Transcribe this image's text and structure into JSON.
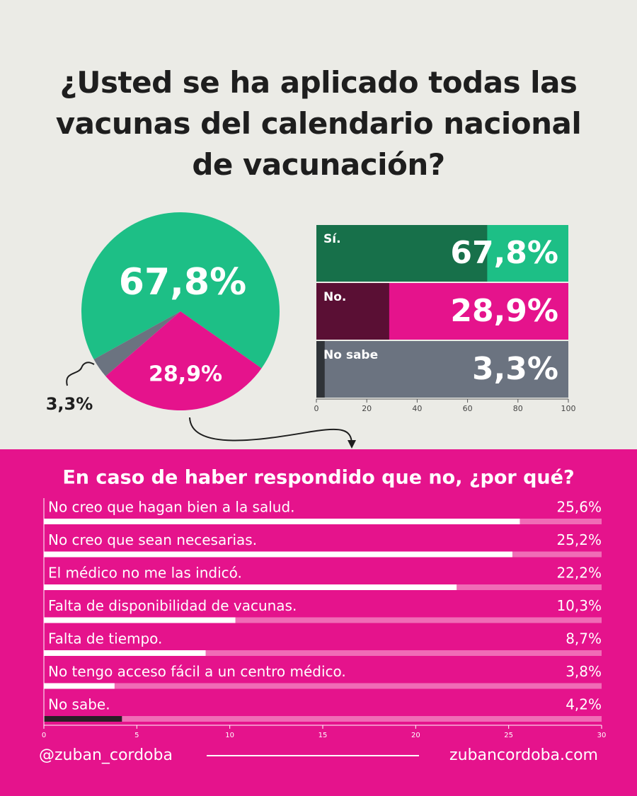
{
  "title": "¿Usted se ha aplicado todas las vacunas del calendario nacional de vacunación?",
  "chart_data": [
    {
      "type": "pie",
      "values": [
        67.8,
        28.9,
        3.3
      ],
      "value_labels": [
        "67,8%",
        "28,9%",
        "3,3%"
      ],
      "colors": [
        "#1dbf86",
        "#e5138c",
        "#6b7380"
      ]
    },
    {
      "type": "hbar",
      "categories": [
        "Sí.",
        "No.",
        "No sabe"
      ],
      "values": [
        67.8,
        28.9,
        3.3
      ],
      "value_labels": [
        "67,8%",
        "28,9%",
        "3,3%"
      ],
      "colors": [
        "#17704a",
        "#5a0f34",
        "#2f3338"
      ],
      "track_colors": [
        "#1dbf86",
        "#e5138c",
        "#6b7380"
      ],
      "xlim": [
        0,
        100
      ],
      "xticks": [
        0,
        20,
        40,
        60,
        80,
        100
      ]
    },
    {
      "type": "hbar-list",
      "title": "En caso de  haber respondido que no, ¿por qué?",
      "categories": [
        "No creo que hagan bien a la salud.",
        "No creo que sean necesarias.",
        "El médico no me las indicó.",
        "Falta de disponibilidad de vacunas.",
        "Falta de tiempo.",
        "No tengo acceso fácil a un centro médico.",
        "No sabe."
      ],
      "values": [
        25.6,
        25.2,
        22.2,
        10.3,
        8.7,
        3.8,
        4.2
      ],
      "value_labels": [
        "25,6%",
        "25,2%",
        "22,2%",
        "10,3%",
        "8,7%",
        "3,8%",
        "4,2%"
      ],
      "colors": [
        "#ffffff",
        "#ffffff",
        "#ffffff",
        "#ffffff",
        "#ffffff",
        "#ffffff",
        "#2a1f26"
      ],
      "track_color": "#f06cb6",
      "xlim": [
        0,
        30
      ],
      "xticks": [
        0,
        5,
        10,
        15,
        20,
        25,
        30
      ]
    }
  ],
  "footer": {
    "left": "@zuban_cordoba",
    "right": "zubancordoba.com"
  }
}
